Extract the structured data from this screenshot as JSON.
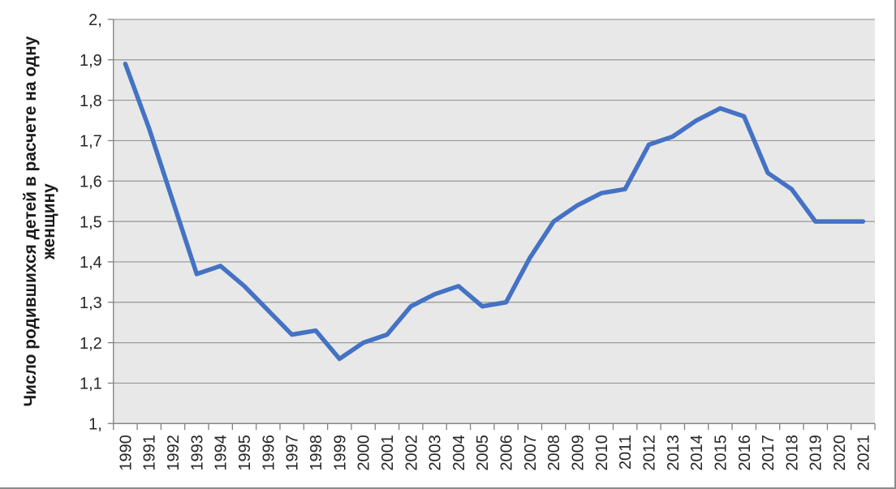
{
  "chart_data": {
    "type": "line",
    "title": "",
    "ylabel_lines": [
      "Число родившихся детей в расчете на одну",
      "женщину"
    ],
    "xlabel": "",
    "categories": [
      "1990",
      "1991",
      "1992",
      "1993",
      "1994",
      "1995",
      "1996",
      "1997",
      "1998",
      "1999",
      "2000",
      "2001",
      "2002",
      "2003",
      "2004",
      "2005",
      "2006",
      "2007",
      "2008",
      "2009",
      "2010",
      "2011",
      "2012",
      "2013",
      "2014",
      "2015",
      "2016",
      "2017",
      "2018",
      "2019",
      "2020",
      "2021"
    ],
    "series": [
      {
        "name": "Число родившихся детей в расчете на одну женщину",
        "values": [
          1.89,
          1.73,
          1.55,
          1.37,
          1.39,
          1.34,
          1.28,
          1.22,
          1.23,
          1.16,
          1.2,
          1.22,
          1.29,
          1.32,
          1.34,
          1.29,
          1.3,
          1.41,
          1.5,
          1.54,
          1.57,
          1.58,
          1.69,
          1.71,
          1.75,
          1.78,
          1.76,
          1.62,
          1.58,
          1.5,
          1.5,
          1.5
        ]
      }
    ],
    "ylim": [
      1.0,
      2.0
    ],
    "ytick_values": [
      2.0,
      1.9,
      1.8,
      1.7,
      1.6,
      1.5,
      1.4,
      1.3,
      1.2,
      1.1,
      1.0
    ],
    "ytick_labels": [
      "2,",
      "1,9",
      "1,8",
      "1,7",
      "1,6",
      "1,5",
      "1,4",
      "1,3",
      "1,2",
      "1,1",
      "1,"
    ],
    "grid": true,
    "legend": "none",
    "colors": {
      "line": "#4472C4",
      "plot_background": "#E8E8E8",
      "gridline": "#969696",
      "axis": "#808080",
      "tick_text": "#262626",
      "title_text": "#1A1A1A",
      "page_background": "#FFFFFF"
    }
  }
}
